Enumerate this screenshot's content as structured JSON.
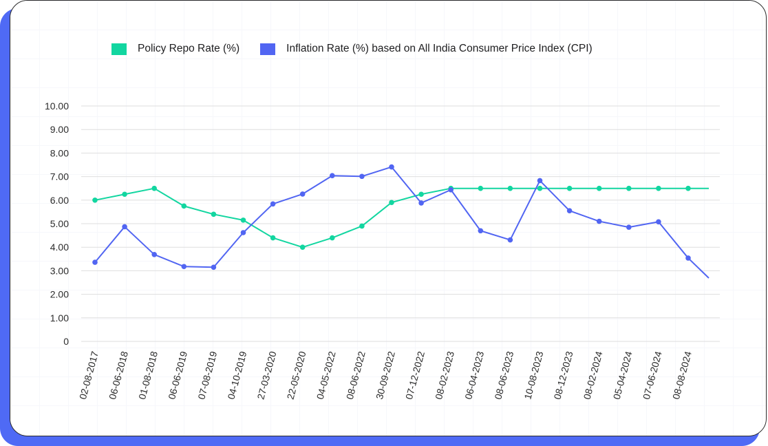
{
  "colors": {
    "repo": "#12d6a0",
    "inflation": "#5165f2",
    "grid": "#dedede",
    "text": "#2b2b2b"
  },
  "chart_data": {
    "type": "line",
    "categories": [
      "02-08-2017",
      "06-06-2018",
      "01-08-2018",
      "06-06-2019",
      "07-08-2019",
      "04-10-2019",
      "27-03-2020",
      "22-05-2020",
      "04-05-2022",
      "08-06-2022",
      "30-09-2022",
      "07-12-2022",
      "08-02-2023",
      "06-04-2023",
      "08-06-2023",
      "10-08-2023",
      "08-12-2023",
      "08-02-2024",
      "05-04-2024",
      "07-06-2024",
      "08-08-2024"
    ],
    "series": [
      {
        "name": "Policy Repo Rate (%)",
        "color": "#12d6a0",
        "values": [
          6.0,
          6.25,
          6.5,
          5.75,
          5.4,
          5.15,
          4.4,
          4.0,
          4.4,
          4.9,
          5.9,
          6.25,
          6.5,
          6.5,
          6.5,
          6.5,
          6.5,
          6.5,
          6.5,
          6.5,
          6.5
        ],
        "trailing_value": 6.5
      },
      {
        "name": "Inflation Rate (%) based on All India Consumer Price Index (CPI)",
        "color": "#5165f2",
        "values": [
          3.36,
          4.87,
          3.69,
          3.18,
          3.15,
          4.62,
          5.84,
          6.26,
          7.04,
          7.01,
          7.41,
          5.88,
          6.44,
          4.7,
          4.31,
          6.83,
          5.55,
          5.1,
          4.85,
          5.08,
          3.54
        ],
        "trailing_value": 2.69
      }
    ],
    "yticks": [
      "0",
      "1.00",
      "2.00",
      "3.00",
      "4.00",
      "5.00",
      "6.00",
      "7.00",
      "8.00",
      "9.00",
      "10.00"
    ],
    "ylim": [
      0,
      10
    ],
    "grid": true,
    "legend_position": "top"
  }
}
